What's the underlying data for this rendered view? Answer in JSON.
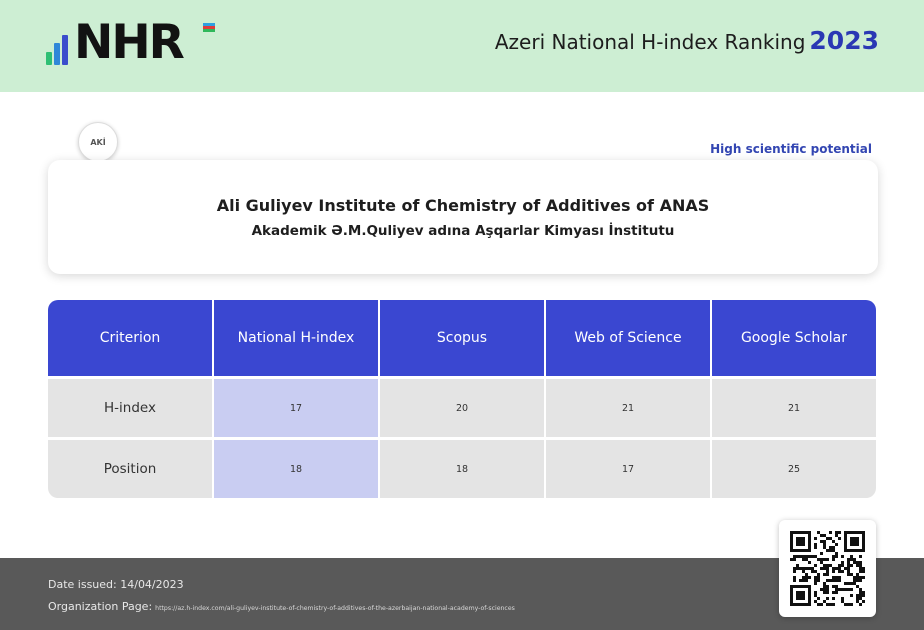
{
  "header": {
    "logo_text": "NHR",
    "title": "Azeri National H-index Ranking",
    "year": "2023"
  },
  "institution": {
    "badge_text": "AKİ",
    "status": "High scientific potential",
    "name_en": "Ali Guliyev Institute of Chemistry of Additives of  ANAS",
    "name_az": "Akademik Ə.M.Quliyev adına Aşqarlar Kimyası İnstitutu"
  },
  "table": {
    "headers": [
      "Criterion",
      "National H-index",
      "Scopus",
      "Web of Science",
      "Google Scholar"
    ],
    "rows": [
      {
        "label": "H-index",
        "values": [
          "17",
          "20",
          "21",
          "21"
        ]
      },
      {
        "label": "Position",
        "values": [
          "18",
          "18",
          "17",
          "25"
        ]
      }
    ]
  },
  "footer": {
    "date_label": "Date issued:",
    "date_value": "14/04/2023",
    "org_label": "Organization Page:",
    "org_url": "https://az.h-index.com/ali-guliyev-institute-of-chemistry-of-additives-of-the-azerbaijan-national-academy-of-sciences"
  },
  "icons": {
    "logo_bars": "bar-chart-icon",
    "flag": "azerbaijan-flag-icon",
    "qr": "qr-code-icon"
  },
  "colors": {
    "header_bg": "#cdeed3",
    "table_header_bg": "#3a47d1",
    "highlight_cell": "#c9cdf2",
    "year_color": "#2a38b4",
    "footer_bg": "#595959"
  }
}
